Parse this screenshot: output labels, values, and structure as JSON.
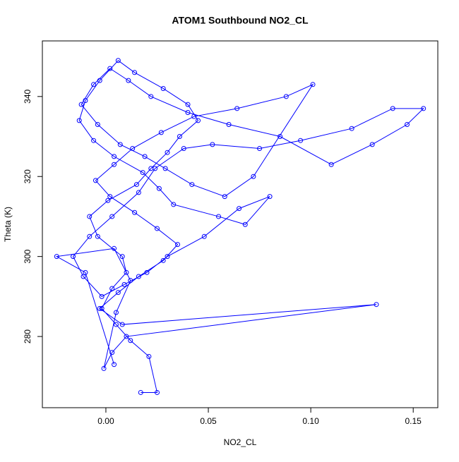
{
  "chart_data": {
    "type": "line_points",
    "title": "ATOM1 Southbound NO2_CL",
    "x_label": "NO2_CL",
    "y_label": "Theta (K)",
    "color": "#0000ff",
    "x": [
      0.017,
      0.025,
      0.021,
      0.012,
      0.005,
      -0.002,
      0.003,
      0.01,
      0.008,
      -0.004,
      -0.008,
      0.001,
      0.015,
      0.022,
      0.03,
      0.036,
      0.045,
      0.04,
      0.028,
      0.014,
      0.006,
      -0.003,
      -0.01,
      -0.013,
      -0.006,
      0.004,
      0.018,
      0.026,
      0.033,
      0.055,
      0.068,
      0.08,
      0.065,
      0.048,
      0.03,
      0.02,
      0.009,
      -0.002,
      -0.011,
      -0.016,
      -0.008,
      0.003,
      0.016,
      0.024,
      0.038,
      0.052,
      0.075,
      0.095,
      0.12,
      0.14,
      0.155,
      0.147,
      0.13,
      0.11,
      0.085,
      0.06,
      0.04,
      0.022,
      0.011,
      0.002,
      -0.006,
      -0.012,
      -0.004,
      0.007,
      0.019,
      0.029,
      0.042,
      0.058,
      0.072,
      0.101,
      0.088,
      0.064,
      0.043,
      0.027,
      0.013,
      0.004,
      -0.005,
      0.002,
      0.014,
      0.025,
      0.035,
      0.028,
      0.016,
      0.006,
      -0.003,
      0.008,
      0.132,
      0.01,
      0.003,
      -0.001,
      0.005,
      0.012,
      0.004,
      -0.024,
      -0.01,
      0.004
    ],
    "values": [
      266,
      266,
      275,
      279,
      283,
      287,
      292,
      296,
      300,
      305,
      310,
      314,
      318,
      322,
      326,
      330,
      334,
      338,
      342,
      346,
      349,
      344,
      339,
      334,
      329,
      325,
      321,
      317,
      313,
      310,
      308,
      315,
      312,
      305,
      300,
      296,
      293,
      290,
      295,
      300,
      305,
      310,
      316,
      322,
      327,
      328,
      327,
      329,
      332,
      337,
      337,
      333,
      328,
      323,
      330,
      333,
      336,
      340,
      344,
      347,
      343,
      338,
      333,
      328,
      325,
      322,
      318,
      315,
      320,
      343,
      340,
      337,
      335,
      331,
      327,
      323,
      319,
      315,
      311,
      307,
      303,
      299,
      295,
      291,
      287,
      283,
      288,
      280,
      276,
      272,
      286,
      294,
      302,
      300,
      296,
      273
    ],
    "xlim": [
      -0.031,
      0.162
    ],
    "ylim": [
      262.2,
      353.9
    ],
    "xticks": [
      {
        "value": 0,
        "label": "0.00"
      },
      {
        "value": 0.05,
        "label": "0.05"
      },
      {
        "value": 0.1,
        "label": "0.10"
      },
      {
        "value": 0.15,
        "label": "0.15"
      }
    ],
    "yticks": [
      280,
      300,
      320,
      340
    ]
  }
}
